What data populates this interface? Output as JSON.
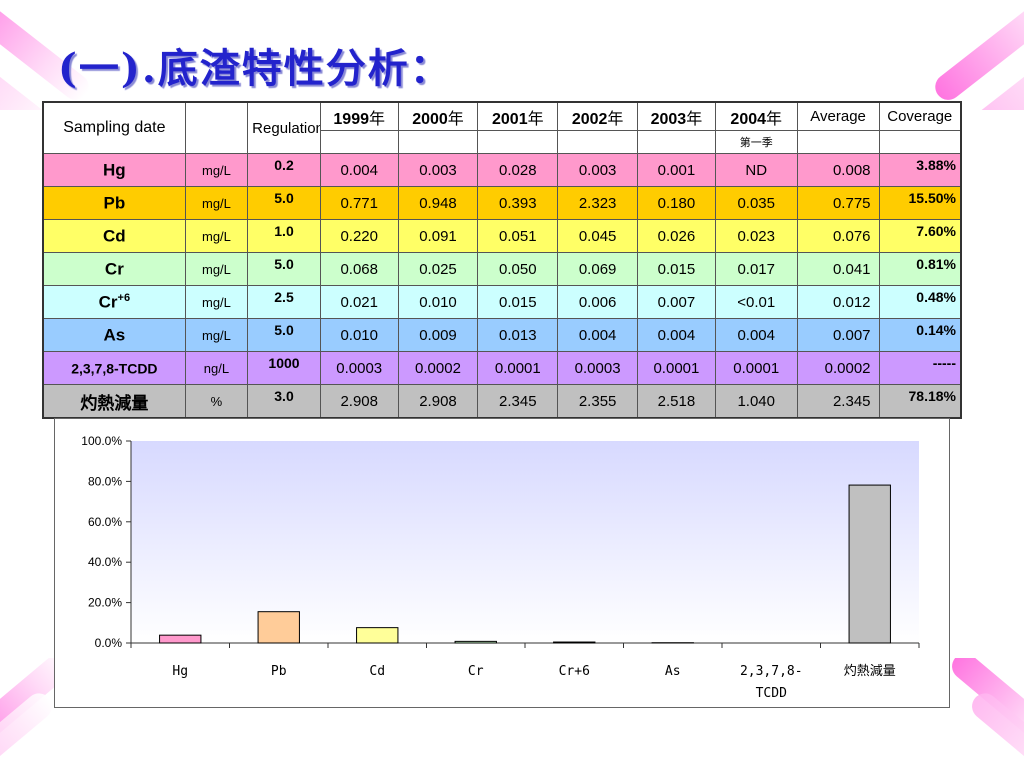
{
  "title": "(一).底渣特性分析：",
  "table": {
    "header": {
      "sampling": "Sampling date",
      "regulation": "Regulation",
      "years": [
        "1999",
        "2000",
        "2001",
        "2002",
        "2003",
        "2004"
      ],
      "year_suffix": "年",
      "average": "Average",
      "coverage": "Coverage",
      "sub_2004": "第一季"
    },
    "rows": [
      {
        "name": "Hg",
        "sup": "",
        "unit": "mg/L",
        "reg": "0.2",
        "vals": [
          "0.004",
          "0.003",
          "0.028",
          "0.003",
          "0.001",
          "ND"
        ],
        "avg": "0.008",
        "cov": "3.88%",
        "color": "#ff99cc"
      },
      {
        "name": "Pb",
        "sup": "",
        "unit": "mg/L",
        "reg": "5.0",
        "vals": [
          "0.771",
          "0.948",
          "0.393",
          "2.323",
          "0.180",
          "0.035"
        ],
        "avg": "0.775",
        "cov": "15.50%",
        "color": "#ffcc00"
      },
      {
        "name": "Cd",
        "sup": "",
        "unit": "mg/L",
        "reg": "1.0",
        "vals": [
          "0.220",
          "0.091",
          "0.051",
          "0.045",
          "0.026",
          "0.023"
        ],
        "avg": "0.076",
        "cov": "7.60%",
        "color": "#ffff66"
      },
      {
        "name": "Cr",
        "sup": "",
        "unit": "mg/L",
        "reg": "5.0",
        "vals": [
          "0.068",
          "0.025",
          "0.050",
          "0.069",
          "0.015",
          "0.017"
        ],
        "avg": "0.041",
        "cov": "0.81%",
        "color": "#ccffcc"
      },
      {
        "name": "Cr",
        "sup": "+6",
        "unit": "mg/L",
        "reg": "2.5",
        "vals": [
          "0.021",
          "0.010",
          "0.015",
          "0.006",
          "0.007",
          "<0.01"
        ],
        "avg": "0.012",
        "cov": "0.48%",
        "color": "#ccffff"
      },
      {
        "name": "As",
        "sup": "",
        "unit": "mg/L",
        "reg": "5.0",
        "vals": [
          "0.010",
          "0.009",
          "0.013",
          "0.004",
          "0.004",
          "0.004"
        ],
        "avg": "0.007",
        "cov": "0.14%",
        "color": "#99ccff"
      },
      {
        "name": "2,3,7,8-TCDD",
        "sup": "",
        "unit": "ng/L",
        "reg": "1000",
        "vals": [
          "0.0003",
          "0.0002",
          "0.0001",
          "0.0003",
          "0.0001",
          "0.0001"
        ],
        "avg": "0.0002",
        "cov": "-----",
        "color": "#cc99ff"
      },
      {
        "name": "灼熱減量",
        "sup": "",
        "unit": "%",
        "reg": "3.0",
        "vals": [
          "2.908",
          "2.908",
          "2.345",
          "2.355",
          "2.518",
          "1.040"
        ],
        "avg": "2.345",
        "cov": "78.18%",
        "color": "#c0c0c0"
      }
    ]
  },
  "chart_data": {
    "type": "bar",
    "categories": [
      "Hg",
      "Pb",
      "Cd",
      "Cr",
      "Cr+6",
      "As",
      "2,3,7,8-TCDD",
      "灼熱減量"
    ],
    "values": [
      3.88,
      15.5,
      7.6,
      0.81,
      0.48,
      0.14,
      0,
      78.18
    ],
    "bar_colors": [
      "#ff99cc",
      "#ffcc99",
      "#ffff99",
      "#ccffcc",
      "#ccffff",
      "#99ccff",
      "#cc99ff",
      "#c0c0c0"
    ],
    "yticks": [
      "100.0%",
      "80.0%",
      "60.0%",
      "40.0%",
      "20.0%",
      "0.0%"
    ],
    "ylim": [
      0,
      100
    ],
    "grid": false,
    "title": "",
    "xlabel": "",
    "ylabel": ""
  },
  "colors": {
    "title": "#2323cc",
    "plot_top": "#d7d9ff",
    "plot_bottom": "#ffffff",
    "corner_streak": "#ff66dd"
  }
}
